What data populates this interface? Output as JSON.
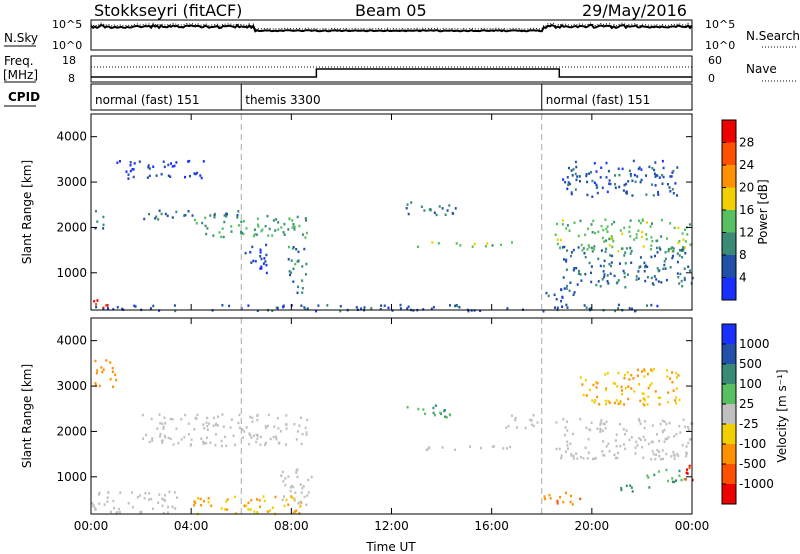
{
  "header": {
    "station": "Stokkseyri (fitACF)",
    "beam": "Beam 05",
    "date": "29/May/2016"
  },
  "status_panels": {
    "nsky_label": "N.Sky",
    "nsky_ticks": [
      "10^5",
      "10^0"
    ],
    "nsearch_label": "N.Search",
    "nsearch_ticks": [
      "10^5",
      "10^0"
    ],
    "freq_label": "Freq.",
    "freq_unit": "[MHz]",
    "freq_ticks": [
      "18",
      "8"
    ],
    "nave_label": "Nave",
    "nave_ticks": [
      "60",
      "0"
    ],
    "cpid_label": "CPID",
    "cpid_segments": [
      {
        "label": "normal (fast) 151",
        "start_hr": 0,
        "end_hr": 6
      },
      {
        "label": "themis 3300",
        "start_hr": 6,
        "end_hr": 18
      },
      {
        "label": "normal (fast) 151",
        "start_hr": 18,
        "end_hr": 24
      }
    ]
  },
  "chart_data": [
    {
      "type": "heatmap",
      "name": "power",
      "xlabel": "",
      "ylabel": "Slant Range [km]",
      "xlim": [
        0,
        24
      ],
      "ylim": [
        180,
        4500
      ],
      "yticks": [
        "1000",
        "2000",
        "3000",
        "4000"
      ],
      "colorbar_label": "Power [dB]",
      "colorbar_ticks": [
        "4",
        "8",
        "12",
        "16",
        "20",
        "24",
        "28"
      ],
      "colorbar_colors": [
        "#1a30ff",
        "#2050a8",
        "#3a8a78",
        "#58c060",
        "#f0d000",
        "#ff9000",
        "#ff5000",
        "#ee0000"
      ],
      "features": [
        {
          "x": [
            0.0,
            0.8
          ],
          "y": [
            180,
            420
          ],
          "value": 28
        },
        {
          "x": [
            0.0,
            23.8
          ],
          "y": [
            180,
            320
          ],
          "value": 6
        },
        {
          "x": [
            0.1,
            0.6
          ],
          "y": [
            2000,
            2400
          ],
          "value": 8
        },
        {
          "x": [
            1.0,
            4.5
          ],
          "y": [
            3100,
            3500
          ],
          "value": 4
        },
        {
          "x": [
            2.0,
            6.0
          ],
          "y": [
            2200,
            2400
          ],
          "value": 8
        },
        {
          "x": [
            4.0,
            8.6
          ],
          "y": [
            1800,
            2300
          ],
          "value": 12
        },
        {
          "x": [
            6.0,
            7.0
          ],
          "y": [
            1000,
            1700
          ],
          "value": 4
        },
        {
          "x": [
            7.8,
            8.6
          ],
          "y": [
            500,
            1600
          ],
          "value": 10
        },
        {
          "x": [
            12.4,
            14.6
          ],
          "y": [
            2300,
            2600
          ],
          "value": 8
        },
        {
          "x": [
            13.0,
            17.1
          ],
          "y": [
            1600,
            1700
          ],
          "value": 14
        },
        {
          "x": [
            18.0,
            19.3
          ],
          "y": [
            300,
            700
          ],
          "value": 6
        },
        {
          "x": [
            18.5,
            24.0
          ],
          "y": [
            1500,
            2200
          ],
          "value": 14
        },
        {
          "x": [
            18.8,
            24.0
          ],
          "y": [
            700,
            1600
          ],
          "value": 8
        },
        {
          "x": [
            18.8,
            23.5
          ],
          "y": [
            2700,
            3500
          ],
          "value": 6
        }
      ]
    },
    {
      "type": "heatmap",
      "name": "velocity",
      "xlabel": "Time UT",
      "ylabel": "Slant Range [km]",
      "xlim": [
        0,
        24
      ],
      "ylim": [
        180,
        4500
      ],
      "xticks": [
        "00:00",
        "04:00",
        "08:00",
        "12:00",
        "16:00",
        "20:00",
        "00:00"
      ],
      "yticks": [
        "1000",
        "2000",
        "3000",
        "4000"
      ],
      "colorbar_label": "Velocity [m s⁻¹]",
      "colorbar_ticks": [
        "1000",
        "500",
        "100",
        "25",
        "-25",
        "-100",
        "-500",
        "-1000"
      ],
      "colorbar_colors": [
        "#1a30ff",
        "#2050a8",
        "#3a8a78",
        "#58c060",
        "#c0c0c0",
        "#f0d000",
        "#ff9000",
        "#ff5000",
        "#ee0000"
      ],
      "features": [
        {
          "x": [
            0.0,
            3.5
          ],
          "y": [
            200,
            700
          ],
          "value": 0
        },
        {
          "x": [
            0.0,
            1.0
          ],
          "y": [
            3000,
            3600
          ],
          "value": -300
        },
        {
          "x": [
            2.0,
            8.6
          ],
          "y": [
            1700,
            2400
          ],
          "value": 0
        },
        {
          "x": [
            4.0,
            8.6
          ],
          "y": [
            200,
            600
          ],
          "value": -100
        },
        {
          "x": [
            7.5,
            8.8
          ],
          "y": [
            400,
            1200
          ],
          "value": 0
        },
        {
          "x": [
            12.6,
            14.5
          ],
          "y": [
            2300,
            2600
          ],
          "value": 100
        },
        {
          "x": [
            13.0,
            17.1
          ],
          "y": [
            1600,
            1700
          ],
          "value": 0
        },
        {
          "x": [
            16.5,
            18.0
          ],
          "y": [
            2100,
            2400
          ],
          "value": 0
        },
        {
          "x": [
            18.0,
            19.5
          ],
          "y": [
            400,
            700
          ],
          "value": -500
        },
        {
          "x": [
            18.5,
            24.0
          ],
          "y": [
            1400,
            2300
          ],
          "value": 0
        },
        {
          "x": [
            21.0,
            22.3
          ],
          "y": [
            700,
            900
          ],
          "value": 200
        },
        {
          "x": [
            22.0,
            23.7
          ],
          "y": [
            900,
            1200
          ],
          "value": 100
        },
        {
          "x": [
            23.6,
            24.0
          ],
          "y": [
            900,
            1500
          ],
          "value": -1000
        },
        {
          "x": [
            19.5,
            23.5
          ],
          "y": [
            2600,
            3400
          ],
          "value": -100
        }
      ]
    }
  ]
}
